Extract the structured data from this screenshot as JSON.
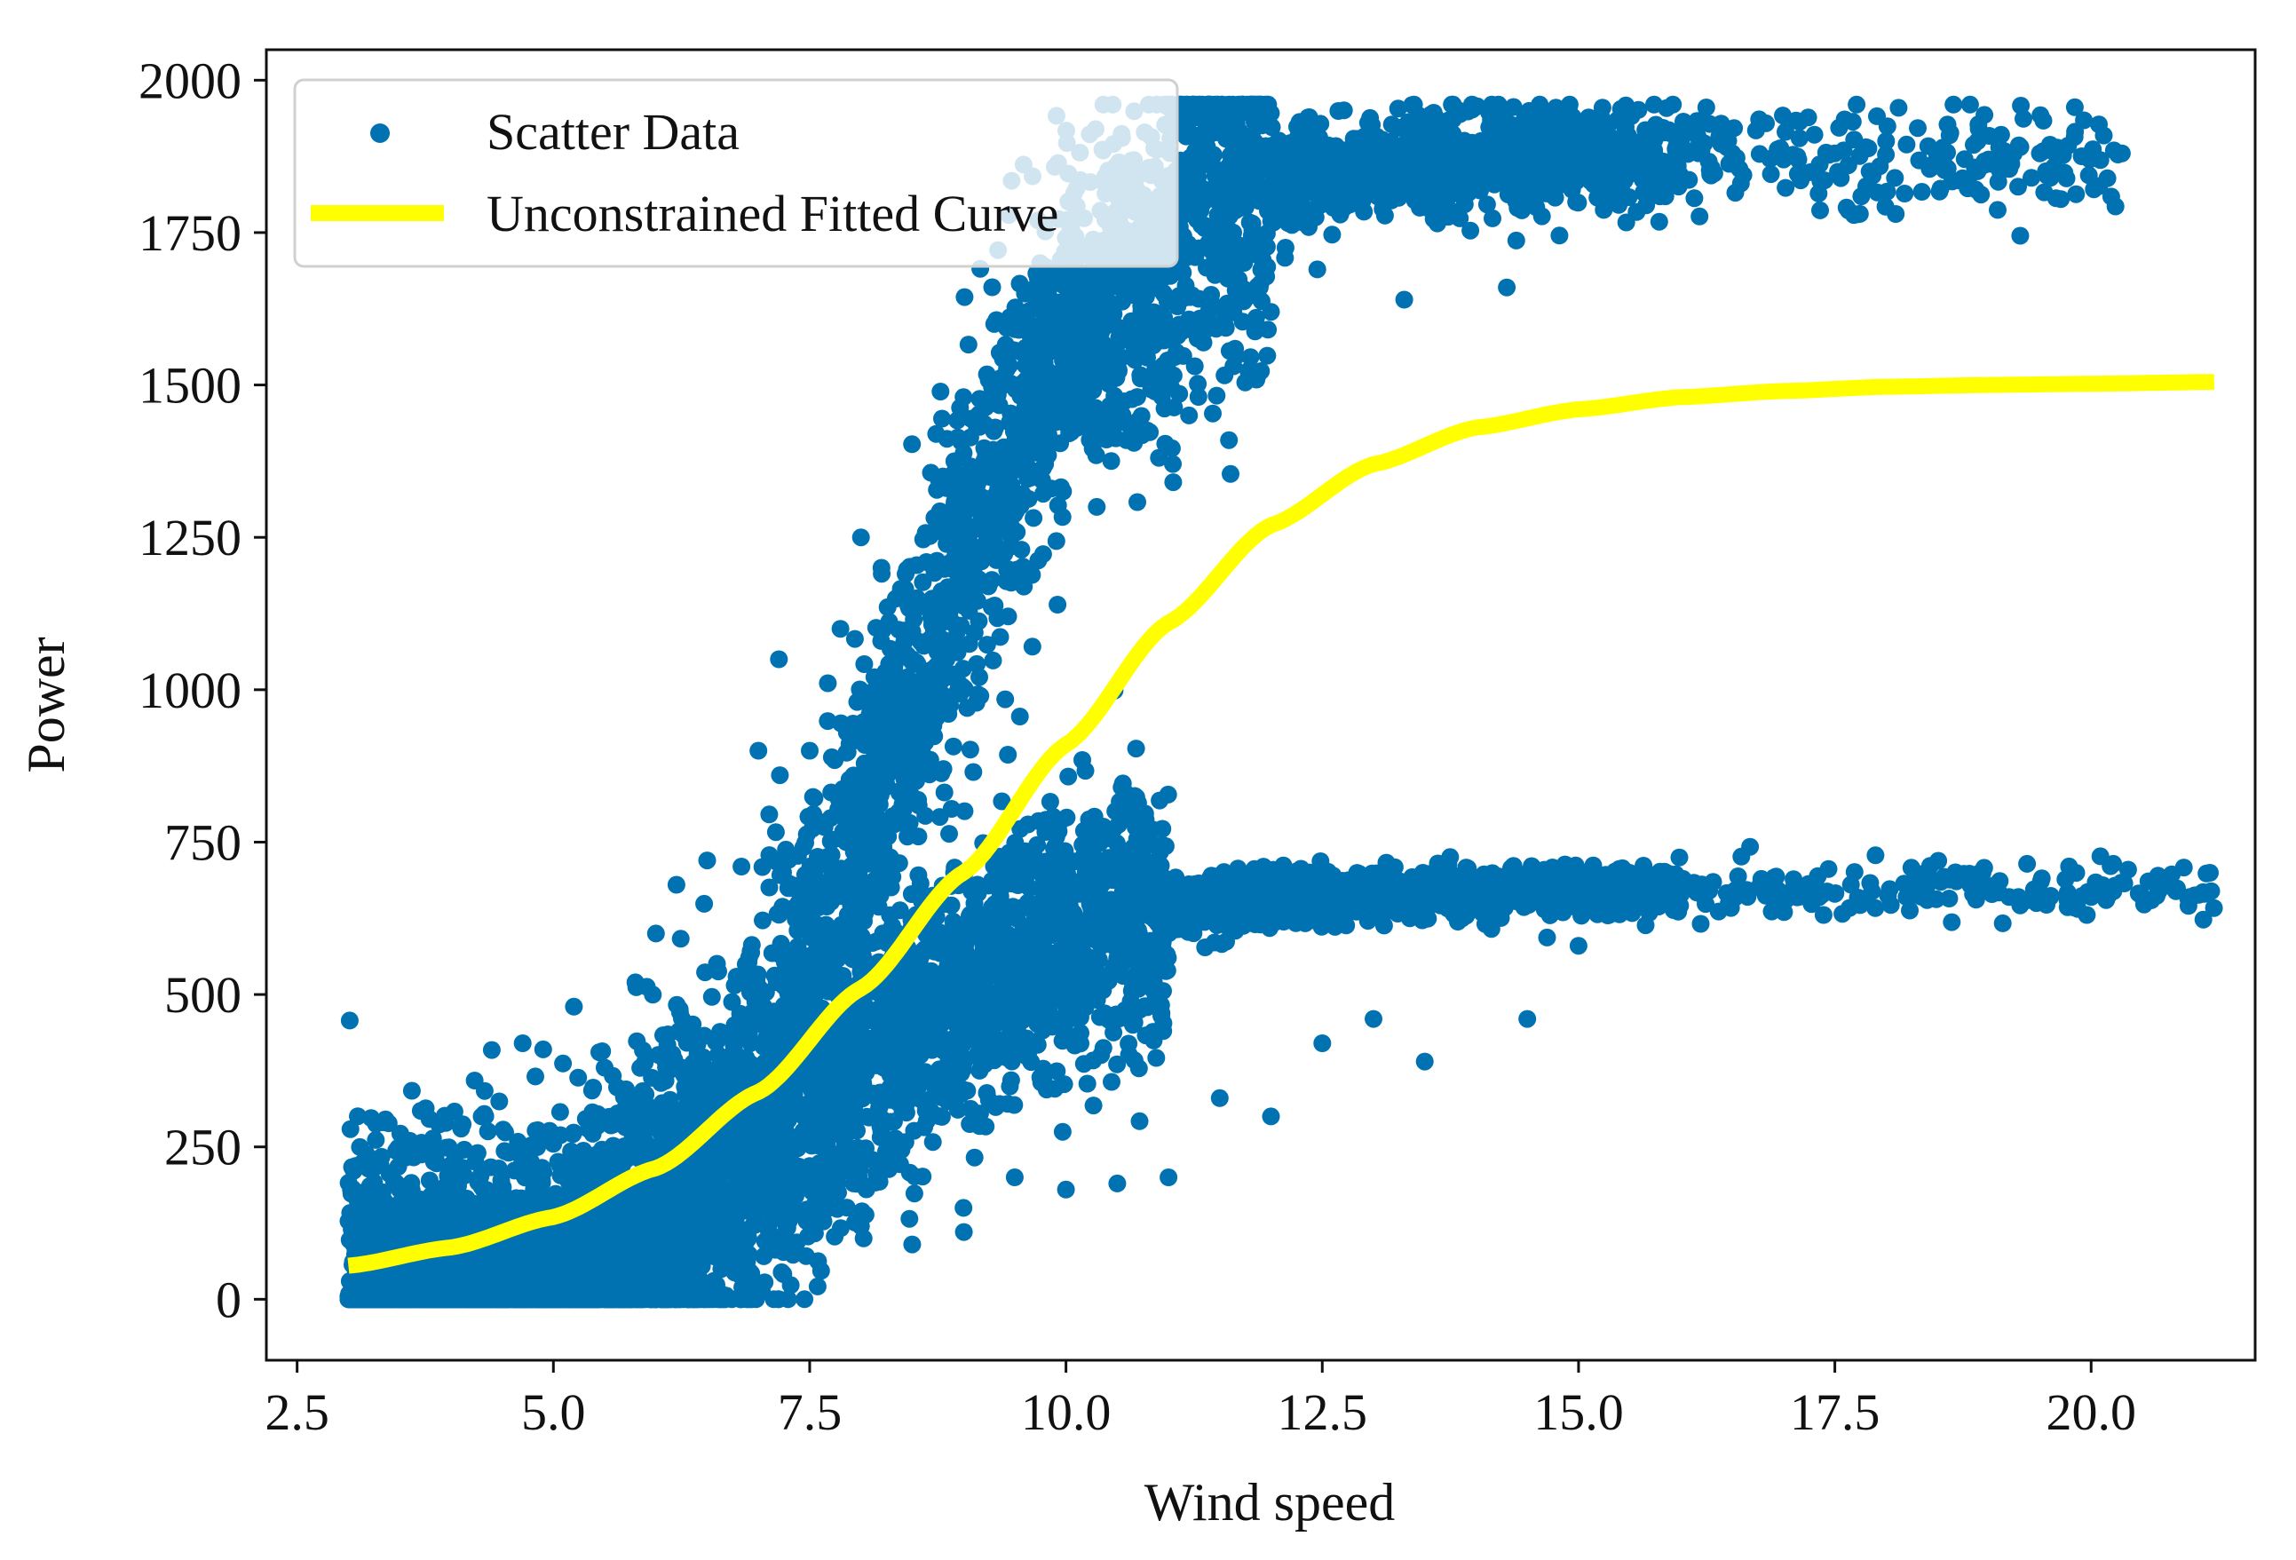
{
  "chart_data": {
    "type": "scatter",
    "xlabel": "Wind speed",
    "ylabel": "Power",
    "xlim": [
      2.2,
      21.6
    ],
    "ylim": [
      -100,
      2050
    ],
    "xticks": [
      "2.5",
      "5.0",
      "7.5",
      "10.0",
      "12.5",
      "15.0",
      "17.5",
      "20.0"
    ],
    "yticks": [
      "0",
      "250",
      "500",
      "750",
      "1000",
      "1250",
      "1500",
      "1750",
      "2000"
    ],
    "grid": false,
    "legend_position": "top-left",
    "series": [
      {
        "name": "Scatter Data",
        "kind": "scatter",
        "color": "#0072b2",
        "description_bands": [
          {
            "band": "upper",
            "x_range": [
              3.0,
              20.3
            ],
            "y_range": [
              0,
              1960
            ]
          },
          {
            "band": "lower",
            "x_range": [
              3.0,
              21.2
            ],
            "y_range": [
              0,
              680
            ]
          }
        ],
        "points": [
          [
            3.0,
            5
          ],
          [
            3.1,
            40
          ],
          [
            3.2,
            120
          ],
          [
            3.3,
            60
          ],
          [
            3.5,
            180
          ],
          [
            3.6,
            260
          ],
          [
            3.8,
            90
          ],
          [
            4.0,
            220
          ],
          [
            4.1,
            280
          ],
          [
            4.3,
            300
          ],
          [
            4.5,
            120
          ],
          [
            4.7,
            420
          ],
          [
            4.9,
            410
          ],
          [
            5.2,
            480
          ],
          [
            5.5,
            380
          ],
          [
            5.8,
            520
          ],
          [
            6.0,
            600
          ],
          [
            6.2,
            680
          ],
          [
            6.5,
            720
          ],
          [
            7.0,
            900
          ],
          [
            7.2,
            1050
          ],
          [
            7.5,
            900
          ],
          [
            7.8,
            1100
          ],
          [
            8.0,
            1250
          ],
          [
            8.2,
            1200
          ],
          [
            8.5,
            1050
          ],
          [
            8.8,
            1350
          ],
          [
            9.0,
            1480
          ],
          [
            9.3,
            1600
          ],
          [
            9.6,
            1650
          ],
          [
            10.0,
            1720
          ],
          [
            10.5,
            1780
          ],
          [
            11.0,
            1820
          ],
          [
            11.5,
            1850
          ],
          [
            12.0,
            1860
          ],
          [
            12.5,
            1880
          ],
          [
            13.0,
            1900
          ],
          [
            13.5,
            1920
          ],
          [
            14.0,
            1870
          ],
          [
            14.5,
            1880
          ],
          [
            15.0,
            1860
          ],
          [
            15.5,
            1900
          ],
          [
            16.0,
            1900
          ],
          [
            16.5,
            1880
          ],
          [
            17.0,
            1870
          ],
          [
            17.5,
            1880
          ],
          [
            18.0,
            1900
          ],
          [
            18.5,
            1880
          ],
          [
            19.0,
            1870
          ],
          [
            19.5,
            1880
          ],
          [
            20.3,
            1880
          ],
          [
            9.8,
            1400
          ],
          [
            10.3,
            1300
          ],
          [
            11.2,
            1450
          ],
          [
            12.0,
            1620
          ],
          [
            13.3,
            1640
          ],
          [
            14.3,
            1660
          ],
          [
            6.5,
            300
          ],
          [
            7.0,
            380
          ],
          [
            7.5,
            420
          ],
          [
            8.0,
            460
          ],
          [
            8.5,
            500
          ],
          [
            9.0,
            540
          ],
          [
            9.5,
            580
          ],
          [
            10.0,
            620
          ],
          [
            10.5,
            640
          ],
          [
            11.0,
            650
          ],
          [
            11.5,
            660
          ],
          [
            12.0,
            665
          ],
          [
            13.0,
            670
          ],
          [
            14.0,
            670
          ],
          [
            15.0,
            670
          ],
          [
            16.0,
            665
          ],
          [
            17.0,
            665
          ],
          [
            17.5,
            665
          ],
          [
            18.2,
            660
          ],
          [
            18.4,
            655
          ],
          [
            19.2,
            660
          ],
          [
            19.6,
            660
          ],
          [
            20.0,
            660
          ],
          [
            21.1,
            665
          ],
          [
            8.0,
            120
          ],
          [
            8.5,
            90
          ],
          [
            9.0,
            150
          ],
          [
            9.5,
            200
          ],
          [
            10.0,
            180
          ],
          [
            10.5,
            190
          ],
          [
            11.0,
            200
          ],
          [
            11.5,
            330
          ],
          [
            12.0,
            300
          ],
          [
            12.5,
            420
          ],
          [
            13.0,
            460
          ],
          [
            13.5,
            390
          ],
          [
            14.5,
            460
          ],
          [
            15.0,
            580
          ]
        ]
      },
      {
        "name": "Unconstrained Fitted Curve",
        "kind": "line",
        "color": "#ffff00",
        "x": [
          3.0,
          4.0,
          5.0,
          6.0,
          7.0,
          8.0,
          9.0,
          10.0,
          11.0,
          12.0,
          13.0,
          14.0,
          15.0,
          16.0,
          17.0,
          18.0,
          19.0,
          20.0,
          21.2
        ],
        "y": [
          55,
          85,
          135,
          215,
          340,
          510,
          700,
          910,
          1110,
          1270,
          1370,
          1430,
          1460,
          1480,
          1490,
          1497,
          1500,
          1502,
          1505
        ]
      }
    ]
  }
}
